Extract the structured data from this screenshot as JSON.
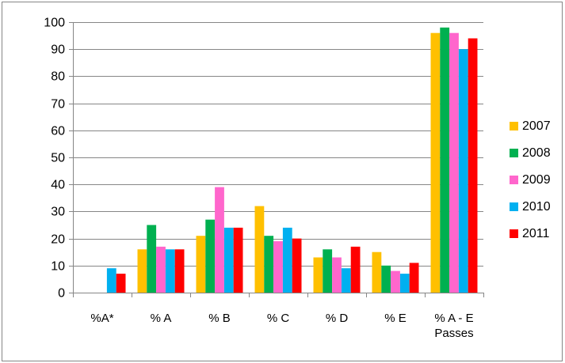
{
  "chart_data": {
    "type": "bar",
    "title": "",
    "xlabel": "",
    "ylabel": "",
    "ylim": [
      0,
      100
    ],
    "yticks": [
      0,
      10,
      20,
      30,
      40,
      50,
      60,
      70,
      80,
      90,
      100
    ],
    "grid": true,
    "legend_position": "right",
    "categories": [
      [
        "%A*"
      ],
      [
        "% A"
      ],
      [
        "% B"
      ],
      [
        "% C"
      ],
      [
        "% D"
      ],
      [
        "% E"
      ],
      [
        "% A - E",
        "Passes"
      ]
    ],
    "series": [
      {
        "name": "2007",
        "color": "#ffc000",
        "values": [
          null,
          16,
          21,
          32,
          13,
          15,
          96
        ]
      },
      {
        "name": "2008",
        "color": "#00b050",
        "values": [
          null,
          25,
          27,
          21,
          16,
          10,
          98
        ]
      },
      {
        "name": "2009",
        "color": "#ff66cc",
        "values": [
          null,
          17,
          39,
          19,
          13,
          8,
          96
        ]
      },
      {
        "name": "2010",
        "color": "#00b0f0",
        "values": [
          9,
          16,
          24,
          24,
          9,
          7,
          90
        ]
      },
      {
        "name": "2011",
        "color": "#ff0000",
        "values": [
          7,
          16,
          24,
          20,
          17,
          11,
          94
        ]
      }
    ]
  }
}
